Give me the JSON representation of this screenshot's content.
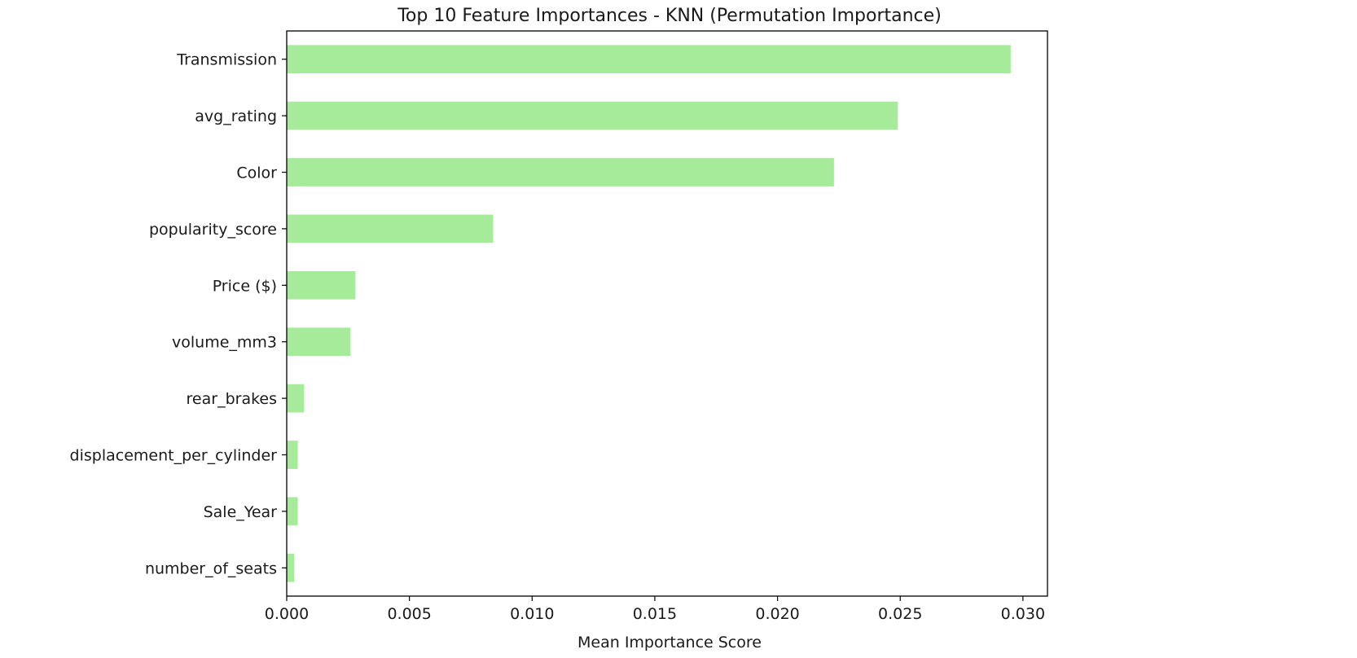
{
  "chart_data": {
    "type": "bar",
    "orientation": "horizontal",
    "title": "Top 10 Feature Importances - KNN (Permutation Importance)",
    "xlabel": "Mean Importance Score",
    "ylabel": "",
    "categories": [
      "Transmission",
      "avg_rating",
      "Color",
      "popularity_score",
      "Price ($)",
      "volume_mm3",
      "rear_brakes",
      "displacement_per_cylinder",
      "Sale_Year",
      "number_of_seats"
    ],
    "values": [
      0.0295,
      0.0249,
      0.0223,
      0.0084,
      0.0028,
      0.0026,
      0.0007,
      0.00045,
      0.00045,
      0.0003
    ],
    "xlim": [
      0,
      0.031
    ],
    "xticks": [
      0.0,
      0.005,
      0.01,
      0.015,
      0.02,
      0.025,
      0.03
    ],
    "xtick_labels": [
      "0.000",
      "0.005",
      "0.010",
      "0.015",
      "0.020",
      "0.025",
      "0.030"
    ],
    "bar_color": "#a6eb9a",
    "grid": false,
    "legend": false
  }
}
